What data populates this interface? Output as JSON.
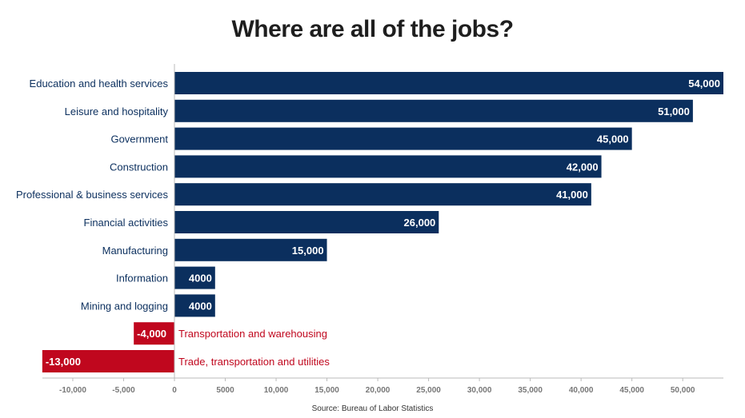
{
  "chart_data": {
    "type": "bar",
    "orientation": "horizontal",
    "title": "Where are all of the jobs?",
    "source": "Source: Bureau of Labor Statistics",
    "categories": [
      "Education and health services",
      "Leisure and hospitality",
      "Government",
      "Construction",
      "Professional & business services",
      "Financial activities",
      "Manufacturing",
      "Information",
      "Mining and logging",
      "Transportation and warehousing",
      "Trade, transportation and utilities"
    ],
    "values": [
      54000,
      51000,
      45000,
      42000,
      41000,
      26000,
      15000,
      4000,
      4000,
      -4000,
      -13000
    ],
    "value_labels": [
      "54,000",
      "51,000",
      "45,000",
      "42,000",
      "41,000",
      "26,000",
      "15,000",
      "4000",
      "4000",
      "-4,000",
      "-13,000"
    ],
    "xlim": [
      -13000,
      54000
    ],
    "xticks": [
      -10000,
      -5000,
      0,
      5000,
      10000,
      15000,
      20000,
      25000,
      30000,
      35000,
      40000,
      45000,
      50000
    ],
    "xtick_labels": [
      "-10,000",
      "-5,000",
      "0",
      "5000",
      "10,000",
      "15,000",
      "20,000",
      "25,000",
      "30,000",
      "35,000",
      "40,000",
      "45,000",
      "50,000"
    ],
    "positive_color": "#0b2f5e",
    "negative_color": "#c0071e",
    "positive_label_color": "#0b2f5e",
    "negative_label_color": "#c0071e",
    "grid": false,
    "legend": "none"
  }
}
